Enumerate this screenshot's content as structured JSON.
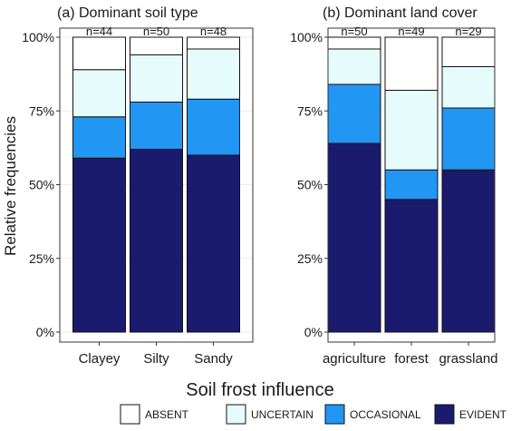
{
  "colors": {
    "ABSENT": "#ffffff",
    "UNCERTAIN": "#e6fbfb",
    "OCCASIONAL": "#2196f3",
    "EVIDENT": "#1a1a6e",
    "panel_border": "#333333",
    "grid": "#ebebeb"
  },
  "ylabel": "Relative frequencies",
  "xlabel": "Soil frost influence",
  "yticks": [
    "0%",
    "25%",
    "50%",
    "75%",
    "100%"
  ],
  "legend": {
    "position": "bottom",
    "items": [
      "ABSENT",
      "UNCERTAIN",
      "OCCASIONAL",
      "EVIDENT"
    ]
  },
  "chart_data": [
    {
      "type": "bar",
      "stacked": true,
      "title": "(a)  Dominant soil type",
      "categories": [
        "Clayey",
        "Silty",
        "Sandy"
      ],
      "counts": [
        "n=44",
        "n=50",
        "n=48"
      ],
      "ylim": [
        0,
        1
      ],
      "series": [
        {
          "name": "EVIDENT",
          "values": [
            0.59,
            0.62,
            0.6
          ]
        },
        {
          "name": "OCCASIONAL",
          "values": [
            0.14,
            0.16,
            0.19
          ]
        },
        {
          "name": "UNCERTAIN",
          "values": [
            0.16,
            0.16,
            0.17
          ]
        },
        {
          "name": "ABSENT",
          "values": [
            0.11,
            0.06,
            0.04
          ]
        }
      ]
    },
    {
      "type": "bar",
      "stacked": true,
      "title": "(b)  Dominant land cover",
      "categories": [
        "agriculture",
        "forest",
        "grassland"
      ],
      "counts": [
        "n=50",
        "n=49",
        "n=29"
      ],
      "ylim": [
        0,
        1
      ],
      "series": [
        {
          "name": "EVIDENT",
          "values": [
            0.64,
            0.45,
            0.55
          ]
        },
        {
          "name": "OCCASIONAL",
          "values": [
            0.2,
            0.1,
            0.21
          ]
        },
        {
          "name": "UNCERTAIN",
          "values": [
            0.12,
            0.27,
            0.14
          ]
        },
        {
          "name": "ABSENT",
          "values": [
            0.04,
            0.18,
            0.1
          ]
        }
      ]
    }
  ]
}
